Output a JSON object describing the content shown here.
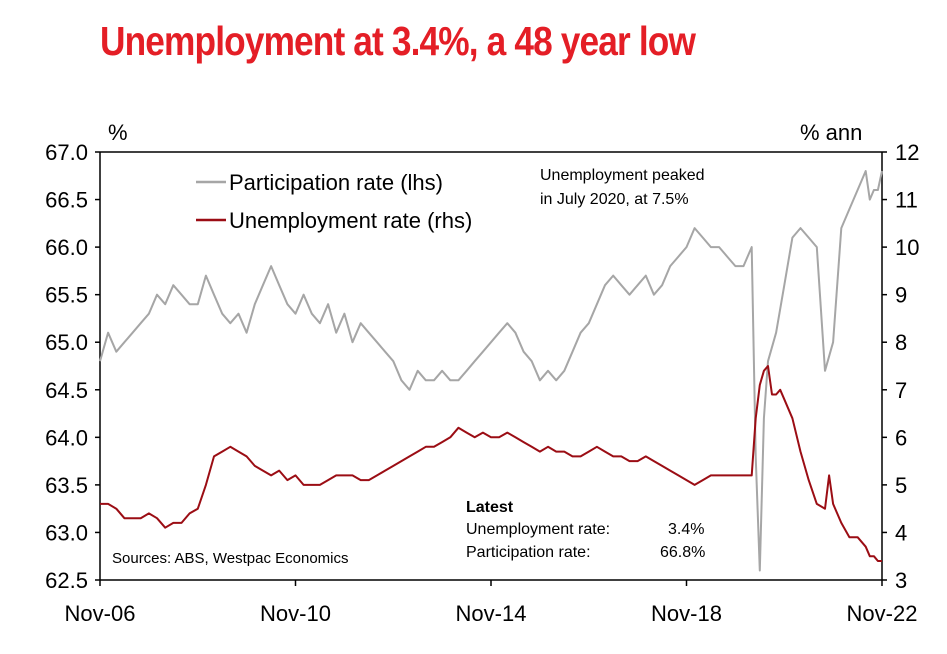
{
  "title": "Unemployment at 3.4%, a 48 year low",
  "annotation": [
    "Unemployment peaked",
    "in July 2020, at 7.5%"
  ],
  "source": "Sources: ABS, Westpac Economics",
  "latest": {
    "heading": "Latest",
    "rows": [
      {
        "label": "Unemployment rate:",
        "value": "3.4%"
      },
      {
        "label": "Participation rate:",
        "value": "66.8%"
      }
    ]
  },
  "chart_data": {
    "type": "line",
    "x_start": "Nov-06",
    "x_end": "Nov-22",
    "x_ticks": [
      "Nov-06",
      "Nov-10",
      "Nov-14",
      "Nov-18",
      "Nov-22"
    ],
    "left_axis": {
      "unit": "%",
      "range": [
        62.5,
        67.0
      ],
      "ticks": [
        "62.5",
        "63.0",
        "63.5",
        "64.0",
        "64.5",
        "65.0",
        "65.5",
        "66.0",
        "66.5",
        "67.0"
      ]
    },
    "right_axis": {
      "unit": "% ann",
      "range": [
        3,
        12
      ],
      "ticks": [
        "3",
        "4",
        "5",
        "6",
        "7",
        "8",
        "9",
        "10",
        "11",
        "12"
      ]
    },
    "legend": "top-left",
    "series": [
      {
        "name": "Participation rate (lhs)",
        "axis": "left",
        "color": "#a6a6a6",
        "points": [
          [
            "Nov-06",
            64.8
          ],
          [
            "Jan-07",
            65.1
          ],
          [
            "Mar-07",
            64.9
          ],
          [
            "May-07",
            65.0
          ],
          [
            "Jul-07",
            65.1
          ],
          [
            "Sep-07",
            65.2
          ],
          [
            "Nov-07",
            65.3
          ],
          [
            "Jan-08",
            65.5
          ],
          [
            "Mar-08",
            65.4
          ],
          [
            "May-08",
            65.6
          ],
          [
            "Jul-08",
            65.5
          ],
          [
            "Sep-08",
            65.4
          ],
          [
            "Nov-08",
            65.4
          ],
          [
            "Jan-09",
            65.7
          ],
          [
            "Mar-09",
            65.5
          ],
          [
            "May-09",
            65.3
          ],
          [
            "Jul-09",
            65.2
          ],
          [
            "Sep-09",
            65.3
          ],
          [
            "Nov-09",
            65.1
          ],
          [
            "Jan-10",
            65.4
          ],
          [
            "Mar-10",
            65.6
          ],
          [
            "May-10",
            65.8
          ],
          [
            "Jul-10",
            65.6
          ],
          [
            "Sep-10",
            65.4
          ],
          [
            "Nov-10",
            65.3
          ],
          [
            "Jan-11",
            65.5
          ],
          [
            "Mar-11",
            65.3
          ],
          [
            "May-11",
            65.2
          ],
          [
            "Jul-11",
            65.4
          ],
          [
            "Sep-11",
            65.1
          ],
          [
            "Nov-11",
            65.3
          ],
          [
            "Jan-12",
            65.0
          ],
          [
            "Mar-12",
            65.2
          ],
          [
            "May-12",
            65.1
          ],
          [
            "Jul-12",
            65.0
          ],
          [
            "Sep-12",
            64.9
          ],
          [
            "Nov-12",
            64.8
          ],
          [
            "Jan-13",
            64.6
          ],
          [
            "Mar-13",
            64.5
          ],
          [
            "May-13",
            64.7
          ],
          [
            "Jul-13",
            64.6
          ],
          [
            "Sep-13",
            64.6
          ],
          [
            "Nov-13",
            64.7
          ],
          [
            "Jan-14",
            64.6
          ],
          [
            "Mar-14",
            64.6
          ],
          [
            "May-14",
            64.7
          ],
          [
            "Jul-14",
            64.8
          ],
          [
            "Sep-14",
            64.9
          ],
          [
            "Nov-14",
            65.0
          ],
          [
            "Jan-15",
            65.1
          ],
          [
            "Mar-15",
            65.2
          ],
          [
            "May-15",
            65.1
          ],
          [
            "Jul-15",
            64.9
          ],
          [
            "Sep-15",
            64.8
          ],
          [
            "Nov-15",
            64.6
          ],
          [
            "Jan-16",
            64.7
          ],
          [
            "Mar-16",
            64.6
          ],
          [
            "May-16",
            64.7
          ],
          [
            "Jul-16",
            64.9
          ],
          [
            "Sep-16",
            65.1
          ],
          [
            "Nov-16",
            65.2
          ],
          [
            "Jan-17",
            65.4
          ],
          [
            "Mar-17",
            65.6
          ],
          [
            "May-17",
            65.7
          ],
          [
            "Jul-17",
            65.6
          ],
          [
            "Sep-17",
            65.5
          ],
          [
            "Nov-17",
            65.6
          ],
          [
            "Jan-18",
            65.7
          ],
          [
            "Mar-18",
            65.5
          ],
          [
            "May-18",
            65.6
          ],
          [
            "Jul-18",
            65.8
          ],
          [
            "Sep-18",
            65.9
          ],
          [
            "Nov-18",
            66.0
          ],
          [
            "Jan-19",
            66.2
          ],
          [
            "Mar-19",
            66.1
          ],
          [
            "May-19",
            66.0
          ],
          [
            "Jul-19",
            66.0
          ],
          [
            "Sep-19",
            65.9
          ],
          [
            "Nov-19",
            65.8
          ],
          [
            "Jan-20",
            65.8
          ],
          [
            "Mar-20",
            66.0
          ],
          [
            "Apr-20",
            63.8
          ],
          [
            "May-20",
            62.6
          ],
          [
            "Jun-20",
            64.2
          ],
          [
            "Jul-20",
            64.8
          ],
          [
            "Sep-20",
            65.1
          ],
          [
            "Nov-20",
            65.6
          ],
          [
            "Jan-21",
            66.1
          ],
          [
            "Mar-21",
            66.2
          ],
          [
            "May-21",
            66.1
          ],
          [
            "Jul-21",
            66.0
          ],
          [
            "Sep-21",
            64.7
          ],
          [
            "Nov-21",
            65.0
          ],
          [
            "Jan-22",
            66.2
          ],
          [
            "Mar-22",
            66.4
          ],
          [
            "May-22",
            66.6
          ],
          [
            "Jul-22",
            66.8
          ],
          [
            "Aug-22",
            66.5
          ],
          [
            "Sep-22",
            66.6
          ],
          [
            "Oct-22",
            66.6
          ],
          [
            "Nov-22",
            66.8
          ]
        ]
      },
      {
        "name": "Unemployment rate (rhs)",
        "axis": "right",
        "color": "#9b0d14",
        "points": [
          [
            "Nov-06",
            4.6
          ],
          [
            "Jan-07",
            4.6
          ],
          [
            "Mar-07",
            4.5
          ],
          [
            "May-07",
            4.3
          ],
          [
            "Jul-07",
            4.3
          ],
          [
            "Sep-07",
            4.3
          ],
          [
            "Nov-07",
            4.4
          ],
          [
            "Jan-08",
            4.3
          ],
          [
            "Mar-08",
            4.1
          ],
          [
            "May-08",
            4.2
          ],
          [
            "Jul-08",
            4.2
          ],
          [
            "Sep-08",
            4.4
          ],
          [
            "Nov-08",
            4.5
          ],
          [
            "Jan-09",
            5.0
          ],
          [
            "Mar-09",
            5.6
          ],
          [
            "May-09",
            5.7
          ],
          [
            "Jul-09",
            5.8
          ],
          [
            "Sep-09",
            5.7
          ],
          [
            "Nov-09",
            5.6
          ],
          [
            "Jan-10",
            5.4
          ],
          [
            "Mar-10",
            5.3
          ],
          [
            "May-10",
            5.2
          ],
          [
            "Jul-10",
            5.3
          ],
          [
            "Sep-10",
            5.1
          ],
          [
            "Nov-10",
            5.2
          ],
          [
            "Jan-11",
            5.0
          ],
          [
            "Mar-11",
            5.0
          ],
          [
            "May-11",
            5.0
          ],
          [
            "Jul-11",
            5.1
          ],
          [
            "Sep-11",
            5.2
          ],
          [
            "Nov-11",
            5.2
          ],
          [
            "Jan-12",
            5.2
          ],
          [
            "Mar-12",
            5.1
          ],
          [
            "May-12",
            5.1
          ],
          [
            "Jul-12",
            5.2
          ],
          [
            "Sep-12",
            5.3
          ],
          [
            "Nov-12",
            5.4
          ],
          [
            "Jan-13",
            5.5
          ],
          [
            "Mar-13",
            5.6
          ],
          [
            "May-13",
            5.7
          ],
          [
            "Jul-13",
            5.8
          ],
          [
            "Sep-13",
            5.8
          ],
          [
            "Nov-13",
            5.9
          ],
          [
            "Jan-14",
            6.0
          ],
          [
            "Mar-14",
            6.2
          ],
          [
            "May-14",
            6.1
          ],
          [
            "Jul-14",
            6.0
          ],
          [
            "Sep-14",
            6.1
          ],
          [
            "Nov-14",
            6.0
          ],
          [
            "Jan-15",
            6.0
          ],
          [
            "Mar-15",
            6.1
          ],
          [
            "May-15",
            6.0
          ],
          [
            "Jul-15",
            5.9
          ],
          [
            "Sep-15",
            5.8
          ],
          [
            "Nov-15",
            5.7
          ],
          [
            "Jan-16",
            5.8
          ],
          [
            "Mar-16",
            5.7
          ],
          [
            "May-16",
            5.7
          ],
          [
            "Jul-16",
            5.6
          ],
          [
            "Sep-16",
            5.6
          ],
          [
            "Nov-16",
            5.7
          ],
          [
            "Jan-17",
            5.8
          ],
          [
            "Mar-17",
            5.7
          ],
          [
            "May-17",
            5.6
          ],
          [
            "Jul-17",
            5.6
          ],
          [
            "Sep-17",
            5.5
          ],
          [
            "Nov-17",
            5.5
          ],
          [
            "Jan-18",
            5.6
          ],
          [
            "Mar-18",
            5.5
          ],
          [
            "May-18",
            5.4
          ],
          [
            "Jul-18",
            5.3
          ],
          [
            "Sep-18",
            5.2
          ],
          [
            "Nov-18",
            5.1
          ],
          [
            "Jan-19",
            5.0
          ],
          [
            "Mar-19",
            5.1
          ],
          [
            "May-19",
            5.2
          ],
          [
            "Jul-19",
            5.2
          ],
          [
            "Sep-19",
            5.2
          ],
          [
            "Nov-19",
            5.2
          ],
          [
            "Jan-20",
            5.2
          ],
          [
            "Mar-20",
            5.2
          ],
          [
            "Apr-20",
            6.4
          ],
          [
            "May-20",
            7.1
          ],
          [
            "Jun-20",
            7.4
          ],
          [
            "Jul-20",
            7.5
          ],
          [
            "Aug-20",
            6.9
          ],
          [
            "Sep-20",
            6.9
          ],
          [
            "Oct-20",
            7.0
          ],
          [
            "Nov-20",
            6.8
          ],
          [
            "Jan-21",
            6.4
          ],
          [
            "Mar-21",
            5.7
          ],
          [
            "May-21",
            5.1
          ],
          [
            "Jul-21",
            4.6
          ],
          [
            "Sep-21",
            4.5
          ],
          [
            "Oct-21",
            5.2
          ],
          [
            "Nov-21",
            4.6
          ],
          [
            "Jan-22",
            4.2
          ],
          [
            "Mar-22",
            3.9
          ],
          [
            "May-22",
            3.9
          ],
          [
            "Jul-22",
            3.7
          ],
          [
            "Aug-22",
            3.5
          ],
          [
            "Sep-22",
            3.5
          ],
          [
            "Oct-22",
            3.4
          ],
          [
            "Nov-22",
            3.4
          ]
        ]
      }
    ]
  }
}
